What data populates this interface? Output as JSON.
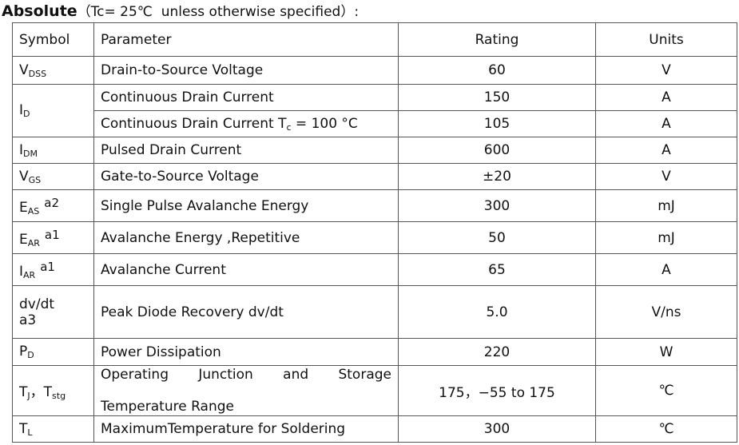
{
  "title": {
    "bold": "Absolute",
    "rest": "（Tc= 25℃  unless otherwise specified）:"
  },
  "table": {
    "header": [
      "Symbol",
      "Parameter",
      "Rating",
      "Units"
    ],
    "rows": [
      {
        "symbol": [
          {
            "text": "V"
          },
          {
            "text": "DSS",
            "sub": true
          }
        ],
        "items": [
          {
            "parameter": [
              {
                "text": "Drain-to-Source Voltage"
              }
            ],
            "rating": "60",
            "unit": "V"
          }
        ]
      },
      {
        "symbol": [
          {
            "text": "I"
          },
          {
            "text": "D",
            "sub": true
          }
        ],
        "items": [
          {
            "parameter": [
              {
                "text": "Continuous Drain Current"
              }
            ],
            "rating": "150",
            "unit": "A"
          },
          {
            "parameter": [
              {
                "text": "Continuous Drain Current T"
              },
              {
                "text": "c",
                "sub": true
              },
              {
                "text": " = 100 °C"
              }
            ],
            "rating": "105",
            "unit": "A"
          }
        ]
      },
      {
        "symbol": [
          {
            "text": "I"
          },
          {
            "text": "DM",
            "sub": true
          }
        ],
        "items": [
          {
            "parameter": [
              {
                "text": "Pulsed Drain Current"
              }
            ],
            "rating": "600",
            "unit": "A"
          }
        ]
      },
      {
        "symbol": [
          {
            "text": "V"
          },
          {
            "text": "GS",
            "sub": true
          }
        ],
        "items": [
          {
            "parameter": [
              {
                "text": "Gate-to-Source Voltage"
              }
            ],
            "rating": "±20",
            "unit": "V"
          }
        ]
      },
      {
        "symbol": [
          {
            "text": "E"
          },
          {
            "text": "AS",
            "sub": true
          },
          {
            "text": "a2",
            "sup": true
          }
        ],
        "items": [
          {
            "parameter": [
              {
                "text": "Single Pulse Avalanche Energy"
              }
            ],
            "rating": "300",
            "unit": "mJ"
          }
        ]
      },
      {
        "symbol": [
          {
            "text": "E"
          },
          {
            "text": "AR",
            "sub": true
          },
          {
            "text": "a1",
            "sup": true
          }
        ],
        "items": [
          {
            "parameter": [
              {
                "text": "Avalanche Energy ,Repetitive"
              }
            ],
            "rating": "50",
            "unit": "mJ"
          }
        ]
      },
      {
        "symbol": [
          {
            "text": "I"
          },
          {
            "text": "AR",
            "sub": true
          },
          {
            "text": "a1",
            "sup": true
          }
        ],
        "items": [
          {
            "parameter": [
              {
                "text": "Avalanche Current"
              }
            ],
            "rating": "65",
            "unit": "A"
          }
        ]
      },
      {
        "symbol": [
          {
            "text": "dv/dt"
          },
          {
            "text": "a3",
            "br": true
          }
        ],
        "items": [
          {
            "parameter": [
              {
                "text": "Peak Diode Recovery dv/dt"
              }
            ],
            "rating": "5.0",
            "unit": "V/ns"
          }
        ]
      },
      {
        "symbol": [
          {
            "text": "P"
          },
          {
            "text": "D",
            "sub": true
          }
        ],
        "items": [
          {
            "parameter": [
              {
                "text": "Power Dissipation"
              }
            ],
            "rating": "220",
            "unit": "W"
          }
        ]
      },
      {
        "symbol": [
          {
            "text": "T"
          },
          {
            "text": "J",
            "sub": true
          },
          {
            "text": "，T"
          },
          {
            "text": "stg",
            "sub": true
          }
        ],
        "items": [
          {
            "parameter": [
              {
                "text": "Operating Junction and Storage",
                "justify": true
              },
              {
                "text": "Temperature Range",
                "br": true
              }
            ],
            "rating": "175，−55 to 175",
            "unit": "℃"
          }
        ]
      },
      {
        "symbol": [
          {
            "text": "T"
          },
          {
            "text": "L",
            "sub": true
          }
        ],
        "items": [
          {
            "parameter": [
              {
                "text": "MaximumTemperature for Soldering"
              }
            ],
            "rating": "300",
            "unit": "℃"
          }
        ]
      }
    ]
  }
}
